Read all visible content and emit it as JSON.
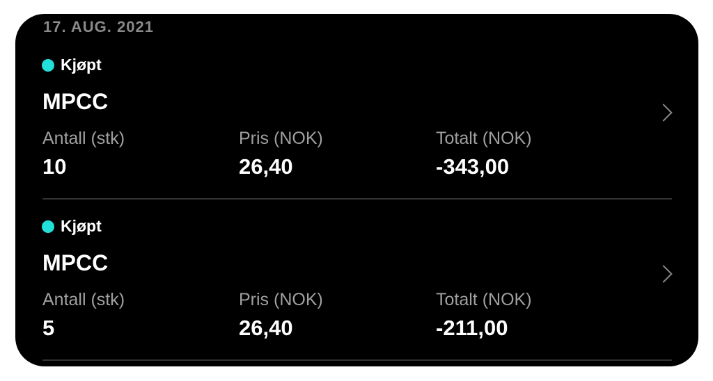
{
  "date_header": "17. AUG. 2021",
  "accent_color": "#22e0d8",
  "transactions": [
    {
      "status": "Kjøpt",
      "ticker": "MPCC",
      "quantity_label": "Antall (stk)",
      "quantity": "10",
      "price_label": "Pris (NOK)",
      "price": "26,40",
      "total_label": "Totalt (NOK)",
      "total": "-343,00"
    },
    {
      "status": "Kjøpt",
      "ticker": "MPCC",
      "quantity_label": "Antall (stk)",
      "quantity": "5",
      "price_label": "Pris (NOK)",
      "price": "26,40",
      "total_label": "Totalt (NOK)",
      "total": "-211,00"
    }
  ]
}
